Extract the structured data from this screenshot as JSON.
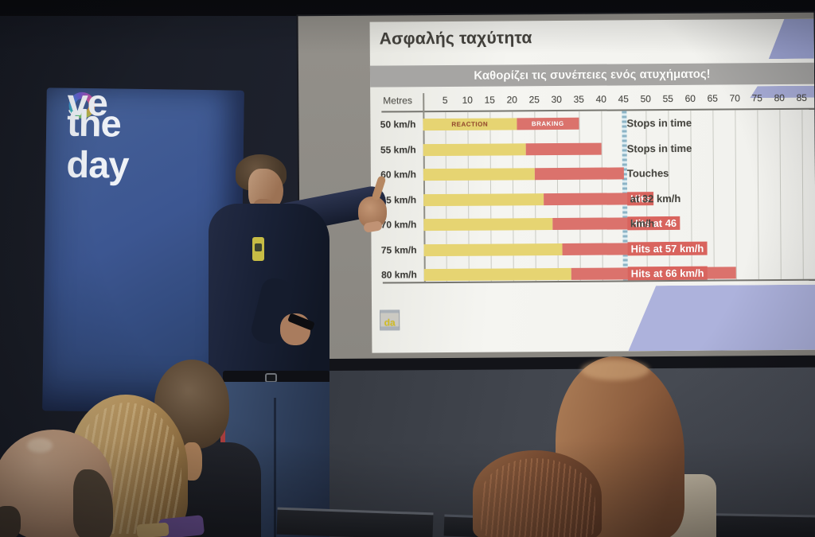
{
  "banner": {
    "word1_pre": "s",
    "word1_post": "ve",
    "word2": "the day",
    "background_color": "#3a5695",
    "text_color": "#eef1f6",
    "ring_colors": [
      "#2fb6ae",
      "#3b82d6",
      "#6f55cf",
      "#c750a0",
      "#e09a3e",
      "#8fc04a"
    ]
  },
  "slide": {
    "title": "Ασφαλής ταχύτητα",
    "subtitle": "Καθορίζει τις συνέπειες ενός ατυχήματος!",
    "logo_text": "da",
    "accent_color": "#a9aedb",
    "subtitle_band_color": "#a6a5a3"
  },
  "chart_data": {
    "type": "bar",
    "orientation": "horizontal",
    "title": "Ασφαλής ταχύτητα",
    "subtitle": "Καθορίζει τις συνέπειες ενός ατυχήματος!",
    "xlabel": "Metres",
    "xlim": [
      0,
      85
    ],
    "ticks": [
      5,
      10,
      15,
      20,
      25,
      30,
      35,
      40,
      45,
      50,
      55,
      60,
      65,
      70,
      75,
      80,
      85
    ],
    "grid": true,
    "obstacle_at_m": 45,
    "categories": [
      "50 km/h",
      "55 km/h",
      "60 km/h",
      "65 km/h",
      "70 km/h",
      "75 km/h",
      "80 km/h"
    ],
    "series": [
      {
        "name": "REACTION",
        "color": "#e7d46c",
        "values": [
          21,
          23,
          25,
          27,
          29,
          31,
          33
        ]
      },
      {
        "name": "BRAKING",
        "color": "#e0716a",
        "values": [
          14,
          17,
          20,
          24,
          28,
          32,
          37
        ]
      }
    ],
    "totals_m": [
      35,
      40,
      45,
      51,
      57,
      63,
      70
    ],
    "outcomes": [
      {
        "highlight": "",
        "rest": "Stops in time"
      },
      {
        "highlight": "",
        "rest": "Stops in time"
      },
      {
        "highlight": "",
        "rest": "Touches"
      },
      {
        "highlight": "Hits",
        "rest": " at 32 km/h"
      },
      {
        "highlight": "Hits at 46",
        "rest": " km/h"
      },
      {
        "highlight": "Hits at 57 km/h",
        "rest": ""
      },
      {
        "highlight": "Hits at 66 km/h",
        "rest": ""
      }
    ],
    "segment_labels": {
      "reaction": "REACTION",
      "braking": "BRAKING"
    },
    "highlight_color": "#df625c"
  }
}
